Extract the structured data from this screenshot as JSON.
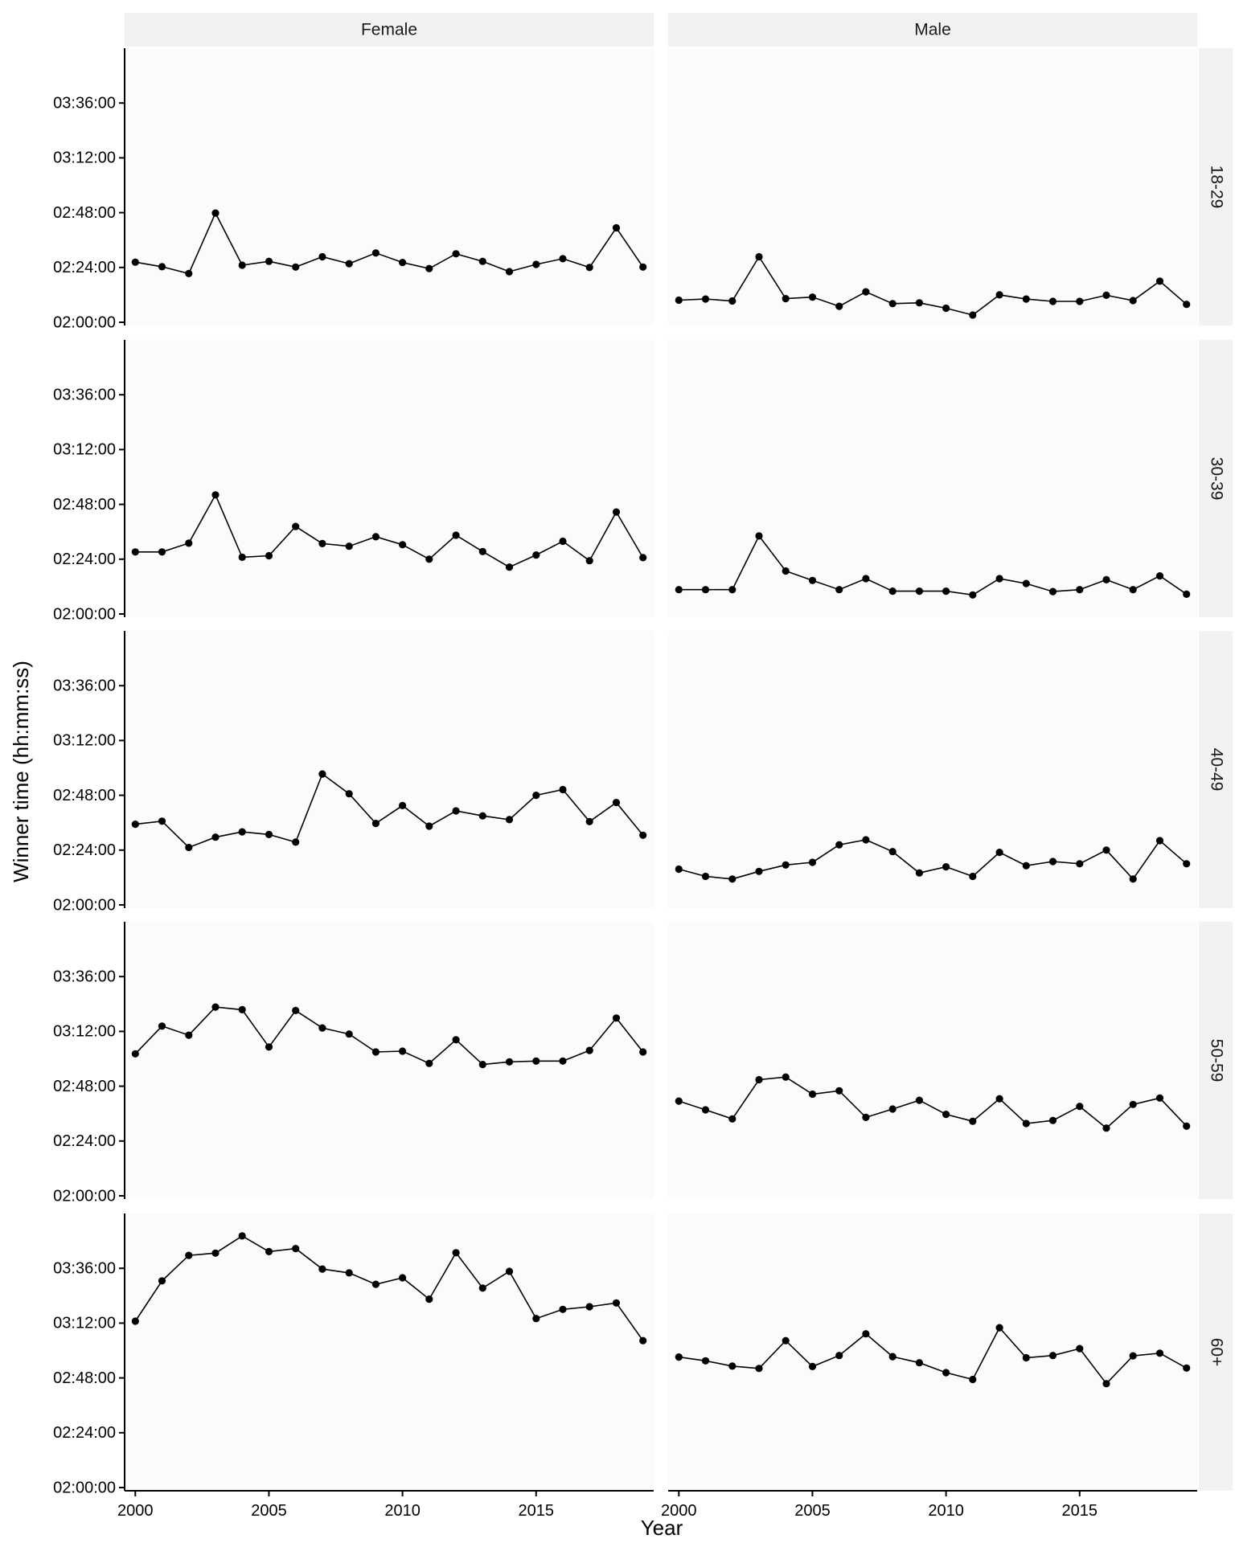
{
  "chart_data": {
    "type": "line",
    "layout": "facet_grid",
    "xlabel": "Year",
    "ylabel": "Winner time (hh:mm:ss)",
    "xlim": [
      1999.6,
      2019.4
    ],
    "ylim_seconds": [
      7200,
      14400
    ],
    "x_ticks": [
      2000,
      2005,
      2010,
      2015
    ],
    "y_ticks": [
      {
        "seconds": 7200,
        "label": "02:00:00"
      },
      {
        "seconds": 8640,
        "label": "02:24:00"
      },
      {
        "seconds": 10080,
        "label": "02:48:00"
      },
      {
        "seconds": 11520,
        "label": "03:12:00"
      },
      {
        "seconds": 12960,
        "label": "03:36:00"
      }
    ],
    "columns": [
      "Female",
      "Male"
    ],
    "rows": [
      "18-29",
      "30-39",
      "40-49",
      "50-59",
      "60+"
    ],
    "years": [
      2000,
      2001,
      2002,
      2003,
      2004,
      2005,
      2006,
      2007,
      2008,
      2009,
      2010,
      2011,
      2012,
      2013,
      2014,
      2015,
      2016,
      2017,
      2018,
      2019
    ],
    "panels": [
      {
        "column": "Female",
        "row": "18-29",
        "values_seconds": [
          8780,
          8660,
          8480,
          10070,
          8700,
          8800,
          8650,
          8920,
          8740,
          9020,
          8770,
          8610,
          9000,
          8800,
          8530,
          8720,
          8870,
          8640,
          9680,
          8650
        ]
      },
      {
        "column": "Male",
        "row": "18-29",
        "values_seconds": [
          7780,
          7810,
          7760,
          8920,
          7820,
          7860,
          7620,
          8000,
          7690,
          7710,
          7570,
          7390,
          7920,
          7810,
          7750,
          7750,
          7910,
          7770,
          8280,
          7670
        ]
      },
      {
        "column": "Female",
        "row": "30-39",
        "values_seconds": [
          8830,
          8830,
          9060,
          10330,
          8690,
          8730,
          9500,
          9050,
          8980,
          9230,
          9020,
          8640,
          9270,
          8840,
          8430,
          8750,
          9110,
          8600,
          9880,
          8680
        ]
      },
      {
        "column": "Male",
        "row": "30-39",
        "values_seconds": [
          7840,
          7840,
          7840,
          9250,
          8330,
          8080,
          7840,
          8130,
          7800,
          7800,
          7800,
          7700,
          8130,
          8000,
          7790,
          7840,
          8100,
          7840,
          8200,
          7720
        ]
      },
      {
        "column": "Female",
        "row": "40-49",
        "values_seconds": [
          9320,
          9400,
          8710,
          8980,
          9120,
          9050,
          8850,
          10640,
          10120,
          9340,
          9810,
          9270,
          9670,
          9540,
          9440,
          10080,
          10230,
          9390,
          9890,
          9030
        ]
      },
      {
        "column": "Male",
        "row": "40-49",
        "values_seconds": [
          8140,
          7950,
          7880,
          8080,
          8250,
          8320,
          8780,
          8910,
          8600,
          8040,
          8200,
          7950,
          8580,
          8230,
          8340,
          8280,
          8640,
          7880,
          8890,
          8280
        ]
      },
      {
        "column": "Female",
        "row": "50-59",
        "values_seconds": [
          10930,
          11660,
          11420,
          12160,
          12090,
          11110,
          12070,
          11610,
          11450,
          10980,
          11000,
          10680,
          11300,
          10650,
          10720,
          10740,
          10740,
          11020,
          11870,
          10980
        ]
      },
      {
        "column": "Male",
        "row": "50-59",
        "values_seconds": [
          9690,
          9460,
          9220,
          10250,
          10320,
          9870,
          9960,
          9260,
          9480,
          9710,
          9340,
          9160,
          9750,
          9100,
          9180,
          9550,
          8980,
          9600,
          9770,
          9030
        ]
      },
      {
        "column": "Female",
        "row": "60+",
        "values_seconds": [
          11570,
          12630,
          13300,
          13360,
          13810,
          13400,
          13480,
          12940,
          12840,
          12540,
          12710,
          12150,
          13370,
          12440,
          12880,
          11640,
          11880,
          11950,
          12050,
          11060
        ]
      },
      {
        "column": "Male",
        "row": "60+",
        "values_seconds": [
          10630,
          10530,
          10390,
          10330,
          11060,
          10380,
          10670,
          11240,
          10640,
          10480,
          10220,
          10040,
          11400,
          10610,
          10670,
          10850,
          9930,
          10660,
          10730,
          10340
        ]
      }
    ]
  }
}
